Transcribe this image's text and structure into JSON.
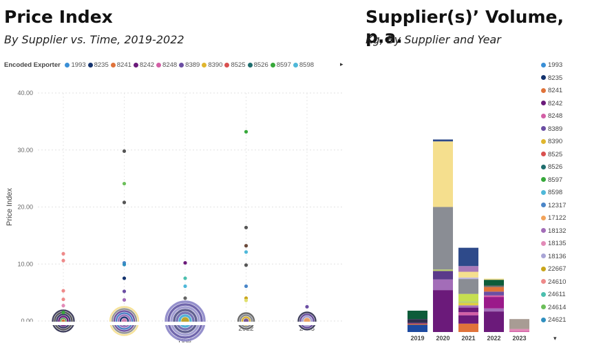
{
  "left": {
    "title": "Price Index",
    "subtitle": "By Supplier vs. Time, 2019-2022",
    "legend_label": "Encoded Exporter",
    "legend_more_icon": "caret-right-icon"
  },
  "right": {
    "title": "Supplier(s)’ Volume, p.a.",
    "subtitle": "Kg, By Supplier and Year",
    "legend_more_icon": "caret-down-icon"
  },
  "suppliers": [
    {
      "name": "1993",
      "color": "#3a8fd6"
    },
    {
      "name": "8235",
      "color": "#14336e"
    },
    {
      "name": "8241",
      "color": "#e0733a"
    },
    {
      "name": "8242",
      "color": "#6b1a7a"
    },
    {
      "name": "8248",
      "color": "#d35fa6"
    },
    {
      "name": "8389",
      "color": "#6b4ea3"
    },
    {
      "name": "8390",
      "color": "#e0b62e"
    },
    {
      "name": "8525",
      "color": "#d9504f"
    },
    {
      "name": "8526",
      "color": "#1f6e6e"
    },
    {
      "name": "8597",
      "color": "#37a83a"
    },
    {
      "name": "8598",
      "color": "#4fb8d9"
    },
    {
      "name": "12317",
      "color": "#4a86c8"
    },
    {
      "name": "17122",
      "color": "#f2a35a"
    },
    {
      "name": "18132",
      "color": "#a36db8"
    },
    {
      "name": "18135",
      "color": "#e38bb8"
    },
    {
      "name": "18136",
      "color": "#a9a5d6"
    },
    {
      "name": "22667",
      "color": "#c9a51b"
    },
    {
      "name": "24610",
      "color": "#ee8a8a"
    },
    {
      "name": "24611",
      "color": "#4cbfae"
    },
    {
      "name": "24614",
      "color": "#6cbf5a"
    },
    {
      "name": "24621",
      "color": "#2f8fbf"
    }
  ],
  "chart_data": [
    {
      "type": "scatter",
      "title": "Price Index",
      "subtitle": "By Supplier vs. Time, 2019-2022",
      "xlabel": "Year",
      "ylabel": "Price Index",
      "categories": [
        "2019",
        "2020",
        "2021",
        "2022",
        "2023"
      ],
      "ylim": [
        0,
        40
      ],
      "yticks": [
        "0.00",
        "10.00",
        "20.00",
        "30.00",
        "40.00"
      ],
      "grid": true,
      "legend": "top",
      "points": [
        {
          "x": "2019",
          "y": 11.8,
          "color": "#ee8a8a"
        },
        {
          "x": "2019",
          "y": 10.6,
          "color": "#ee8a8a"
        },
        {
          "x": "2019",
          "y": 5.3,
          "color": "#ee8a8a"
        },
        {
          "x": "2019",
          "y": 3.8,
          "color": "#ee8a8a"
        },
        {
          "x": "2019",
          "y": 2.7,
          "color": "#e38bb8"
        },
        {
          "x": "2019",
          "y": 1.5,
          "color": "#37a83a"
        },
        {
          "x": "2020",
          "y": 29.8,
          "color": "#555555"
        },
        {
          "x": "2020",
          "y": 24.1,
          "color": "#6cbf5a"
        },
        {
          "x": "2020",
          "y": 20.8,
          "color": "#555555"
        },
        {
          "x": "2020",
          "y": 10.2,
          "color": "#4a86c8"
        },
        {
          "x": "2020",
          "y": 9.9,
          "color": "#2f8fbf"
        },
        {
          "x": "2020",
          "y": 7.5,
          "color": "#14336e"
        },
        {
          "x": "2020",
          "y": 5.2,
          "color": "#6b4ea3"
        },
        {
          "x": "2020",
          "y": 3.7,
          "color": "#a36db8"
        },
        {
          "x": "2021",
          "y": 10.2,
          "color": "#6b1a7a"
        },
        {
          "x": "2021",
          "y": 7.5,
          "color": "#4cbfae"
        },
        {
          "x": "2021",
          "y": 6.1,
          "color": "#4fb8d9"
        },
        {
          "x": "2021",
          "y": 4.0,
          "color": "#666666"
        },
        {
          "x": "2022",
          "y": 33.2,
          "color": "#37a83a"
        },
        {
          "x": "2022",
          "y": 16.4,
          "color": "#555555"
        },
        {
          "x": "2022",
          "y": 13.2,
          "color": "#6b4a3a"
        },
        {
          "x": "2022",
          "y": 12.1,
          "color": "#4fb8d9"
        },
        {
          "x": "2022",
          "y": 9.8,
          "color": "#555555"
        },
        {
          "x": "2022",
          "y": 6.1,
          "color": "#4a86c8"
        },
        {
          "x": "2022",
          "y": 4.0,
          "color": "#c9a51b"
        },
        {
          "x": "2022",
          "y": 3.6,
          "color": "#e0e070"
        },
        {
          "x": "2023",
          "y": 2.5,
          "color": "#6b4ea3"
        }
      ]
    },
    {
      "type": "bar",
      "stacked": true,
      "title": "Supplier(s)’ Volume, p.a.",
      "subtitle": "Kg, By Supplier and Year",
      "categories": [
        "2019",
        "2020",
        "2021",
        "2022",
        "2023"
      ],
      "legend": "right",
      "stacks": [
        [
          {
            "v": 19,
            "c": "#1d4aa0"
          },
          {
            "v": 3,
            "c": "#e0733a"
          },
          {
            "v": 2,
            "c": "#6b1a7a"
          },
          {
            "v": 10,
            "c": "#2e2e4e"
          },
          {
            "v": 22,
            "c": "#0d5c3a"
          }
        ],
        [
          {
            "v": 110,
            "c": "#6b1a7a"
          },
          {
            "v": 28,
            "c": "#a36db8"
          },
          {
            "v": 22,
            "c": "#5a3a8a"
          },
          {
            "v": 4,
            "c": "#b9cf6a"
          },
          {
            "v": 164,
            "c": "#8a8d94"
          },
          {
            "v": 172,
            "c": "#f5df8e"
          },
          {
            "v": 5,
            "c": "#2e4a8a"
          }
        ],
        [
          {
            "v": 22,
            "c": "#e0733a"
          },
          {
            "v": 22,
            "c": "#6b1a7a"
          },
          {
            "v": 8,
            "c": "#d35fa6"
          },
          {
            "v": 12,
            "c": "#6b1a7a"
          },
          {
            "v": 6,
            "c": "#a36db8"
          },
          {
            "v": 6,
            "c": "#e0d040"
          },
          {
            "v": 5,
            "c": "#b9cf6a"
          },
          {
            "v": 19,
            "c": "#c6df50"
          },
          {
            "v": 39,
            "c": "#8a8d94"
          },
          {
            "v": 4,
            "c": "#c0b8e0"
          },
          {
            "v": 15,
            "c": "#f5df8e"
          },
          {
            "v": 15,
            "c": "#a878b8"
          },
          {
            "v": 48,
            "c": "#2e4a8a"
          }
        ],
        [
          {
            "v": 54,
            "c": "#6b1a7a"
          },
          {
            "v": 8,
            "c": "#a36db8"
          },
          {
            "v": 30,
            "c": "#9b1a8a"
          },
          {
            "v": 4,
            "c": "#d35fa6"
          },
          {
            "v": 10,
            "c": "#6b4ea3"
          },
          {
            "v": 12,
            "c": "#e0733a"
          },
          {
            "v": 4,
            "c": "#6a6a6a"
          },
          {
            "v": 15,
            "c": "#0d5c3a"
          },
          {
            "v": 3,
            "c": "#f5df8e"
          }
        ],
        [
          {
            "v": 3,
            "c": "#d35fa6"
          },
          {
            "v": 5,
            "c": "#e38bb8"
          },
          {
            "v": 26,
            "c": "#a89c94"
          }
        ]
      ]
    }
  ]
}
